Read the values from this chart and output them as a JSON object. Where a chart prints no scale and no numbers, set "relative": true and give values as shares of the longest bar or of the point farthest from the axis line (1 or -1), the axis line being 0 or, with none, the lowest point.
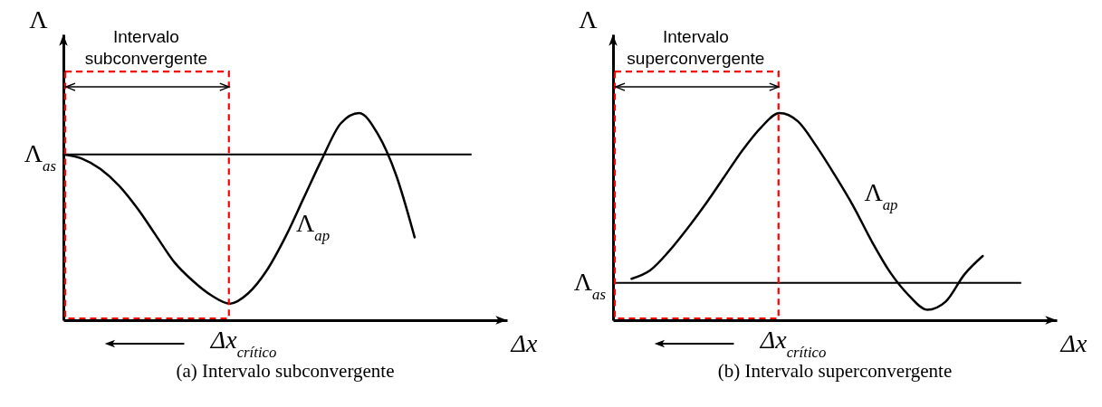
{
  "chart_data": [
    {
      "type": "line",
      "relative": true,
      "title": "(a) Intervalo subconvergente",
      "xlabel": "Δx",
      "ylabel": "Λ",
      "line_style": "solid",
      "categories": [
        null,
        null,
        null,
        null,
        null,
        null,
        null,
        null,
        null,
        null,
        null,
        null,
        null,
        null,
        null,
        null,
        null,
        null,
        null,
        null,
        null,
        null,
        null,
        null,
        null
      ],
      "series": [
        {
          "name": "Λ$_{ap}$",
          "color": "#000000",
          "values": [
            0.8,
            0.78,
            0.73,
            0.65,
            0.54,
            0.41,
            0.28,
            0.19,
            0.12,
            0.08,
            0.13,
            0.24,
            0.4,
            0.59,
            0.78,
            0.95,
            1,
            0.9,
            0.7,
            0.4,
            null,
            null,
            null,
            null,
            null
          ]
        }
      ],
      "ref_lines": [
        {
          "axis": "y",
          "value": 0.8,
          "label": "Λ$_{as}$",
          "color": "#000000"
        }
      ],
      "annotations": [
        "Intervalo subconvergente",
        "Δx$_{crítico}$"
      ]
    },
    {
      "type": "line",
      "relative": true,
      "title": "(b) Intervalo superconvergente",
      "xlabel": "Δx",
      "ylabel": "Λ",
      "line_style": "solid",
      "categories": [
        null,
        null,
        null,
        null,
        null,
        null,
        null,
        null,
        null,
        null,
        null,
        null,
        null,
        null,
        null,
        null,
        null,
        null,
        null,
        null,
        null,
        null,
        null,
        null,
        null
      ],
      "series": [
        {
          "name": "Λ$_{ap}$",
          "color": "#000000",
          "values": [
            null,
            0.2,
            0.24,
            0.33,
            0.44,
            0.56,
            0.69,
            0.82,
            0.93,
            1,
            0.96,
            0.84,
            0.7,
            0.55,
            0.38,
            0.23,
            0.12,
            0.05,
            0.09,
            0.22,
            0.31,
            null,
            null,
            null,
            null
          ]
        }
      ],
      "ref_lines": [
        {
          "axis": "y",
          "value": 0.18,
          "label": "Λ$_{as}$",
          "color": "#000000"
        }
      ],
      "annotations": [
        "Intervalo superconvergente",
        "Δx$_{crítico}$"
      ]
    }
  ]
}
